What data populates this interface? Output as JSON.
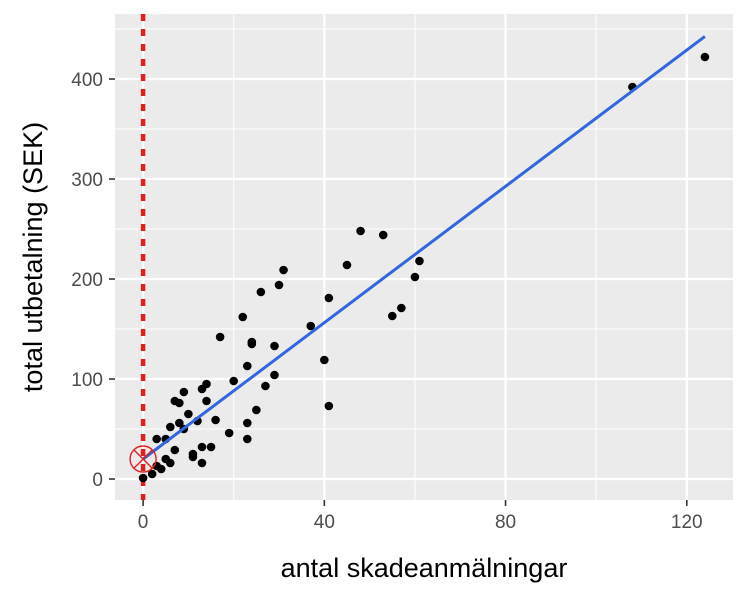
{
  "chart_data": {
    "type": "scatter",
    "title": "",
    "xlabel": "antal skadeanmälningar",
    "ylabel": "total utbetalning (SEK)",
    "xlim": [
      -6.2,
      130.2
    ],
    "ylim": [
      -21,
      465
    ],
    "x_ticks": [
      0,
      40,
      80,
      120
    ],
    "x_tick_labels": [
      "0",
      "40",
      "80",
      "120"
    ],
    "y_ticks": [
      0,
      100,
      200,
      300,
      400
    ],
    "y_tick_labels": [
      "0",
      "100",
      "200",
      "300",
      "400"
    ],
    "grid": true,
    "background": "#ebebeb",
    "points": [
      [
        0,
        1
      ],
      [
        2,
        5
      ],
      [
        3,
        13
      ],
      [
        3,
        40
      ],
      [
        4,
        10
      ],
      [
        5,
        20
      ],
      [
        5,
        40
      ],
      [
        6,
        16
      ],
      [
        6,
        52
      ],
      [
        7,
        29
      ],
      [
        7,
        78
      ],
      [
        8,
        56
      ],
      [
        8,
        76
      ],
      [
        9,
        50
      ],
      [
        9,
        87
      ],
      [
        10,
        65
      ],
      [
        11,
        22
      ],
      [
        11,
        25
      ],
      [
        12,
        58
      ],
      [
        13,
        16
      ],
      [
        13,
        32
      ],
      [
        13,
        90
      ],
      [
        14,
        78
      ],
      [
        14,
        95
      ],
      [
        15,
        32
      ],
      [
        16,
        59
      ],
      [
        17,
        142
      ],
      [
        19,
        46
      ],
      [
        20,
        98
      ],
      [
        22,
        162
      ],
      [
        23,
        40
      ],
      [
        23,
        56
      ],
      [
        23,
        113
      ],
      [
        24,
        135
      ],
      [
        24,
        137
      ],
      [
        25,
        69
      ],
      [
        26,
        187
      ],
      [
        27,
        93
      ],
      [
        29,
        104
      ],
      [
        29,
        133
      ],
      [
        30,
        194
      ],
      [
        31,
        209
      ],
      [
        37,
        153
      ],
      [
        40,
        119
      ],
      [
        41,
        73
      ],
      [
        41,
        181
      ],
      [
        45,
        214
      ],
      [
        48,
        248
      ],
      [
        53,
        244
      ],
      [
        55,
        163
      ],
      [
        57,
        171
      ],
      [
        60,
        202
      ],
      [
        61,
        218
      ],
      [
        108,
        392
      ],
      [
        124,
        422
      ]
    ],
    "regression_line": {
      "x": [
        0,
        124
      ],
      "y": [
        19.99,
        442.6
      ],
      "color": "#3366dd"
    },
    "reference_line": {
      "x": 0,
      "style": "dotted",
      "color": "#e0201e"
    },
    "intercept_marker": {
      "x": 0,
      "y": 19.99,
      "shape": "circle-cross",
      "color": "#e0201e"
    },
    "point_color": "#000000",
    "grid_color": "#ffffff"
  }
}
